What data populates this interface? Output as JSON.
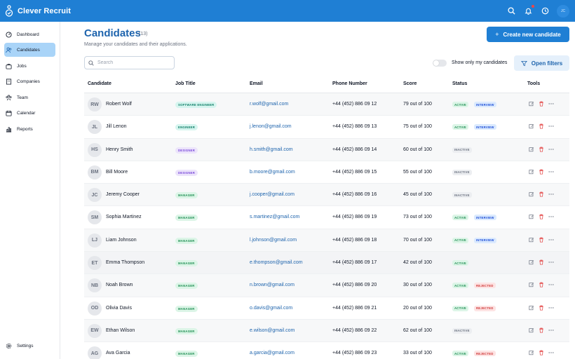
{
  "app": {
    "title": "Clever Recruit",
    "user_initials": "JC"
  },
  "sidebar": {
    "items": [
      {
        "label": "Dashboard",
        "icon": "dashboard-icon"
      },
      {
        "label": "Candidates",
        "icon": "candidates-icon",
        "active": true
      },
      {
        "label": "Jobs",
        "icon": "briefcase-icon"
      },
      {
        "label": "Companies",
        "icon": "building-icon"
      },
      {
        "label": "Team",
        "icon": "team-icon"
      },
      {
        "label": "Calendar",
        "icon": "calendar-icon"
      },
      {
        "label": "Reports",
        "icon": "bar-chart-icon"
      }
    ],
    "settings_label": "Settings"
  },
  "header": {
    "title": "Candidates",
    "count": "(13)",
    "subtitle": "Manage your candidates and their applications.",
    "create_button": "Create new candidate"
  },
  "filters": {
    "search_placeholder": "Search",
    "toggle_label": "Show only my candidates",
    "filter_button": "Open filters"
  },
  "table": {
    "columns": [
      "Candidate",
      "Job Title",
      "Email",
      "Phone Number",
      "Score",
      "Status",
      "Tools"
    ],
    "rows": [
      {
        "initials": "RW",
        "name": "Robert Wolf",
        "job": "SOFTWARE ENGINEER",
        "job_type": "engineer",
        "email": "r.wolf@gmail.com",
        "phone": "+44 (452) 886 09 12",
        "score": "79 out of 100",
        "status": [
          "ACTIVE",
          "INTERVIEW"
        ]
      },
      {
        "initials": "JL",
        "name": "Jill Lenon",
        "job": "ENGINEER",
        "job_type": "engineer",
        "email": "j.lenon@gmail.com",
        "phone": "+44 (452) 886 09 13",
        "score": "75 out of 100",
        "status": [
          "ACTIVE",
          "INTERVIEW"
        ]
      },
      {
        "initials": "HS",
        "name": "Henry Smith",
        "job": "DESIGNER",
        "job_type": "designer",
        "email": "h.smith@gmail.com",
        "phone": "+44 (452) 886 09 14",
        "score": "60 out of 100",
        "status": [
          "INACTIVE"
        ]
      },
      {
        "initials": "BM",
        "name": "Bill Moore",
        "job": "DESIGNER",
        "job_type": "designer",
        "email": "b.moore@gmail.com",
        "phone": "+44 (452) 886 09 15",
        "score": "55 out of 100",
        "status": [
          "INACTIVE"
        ]
      },
      {
        "initials": "JC",
        "name": "Jeremy Cooper",
        "job": "MANAGER",
        "job_type": "manager",
        "email": "j.cooper@gmail.com",
        "phone": "+44 (452) 886 09 16",
        "score": "45 out of 100",
        "status": [
          "INACTIVE"
        ]
      },
      {
        "initials": "SM",
        "name": "Sophia Martinez",
        "job": "MANAGER",
        "job_type": "manager",
        "email": "s.martinez@gmail.com",
        "phone": "+44 (452) 886 09 19",
        "score": "73 out of 100",
        "status": [
          "ACTIVE",
          "INTERVIEW"
        ]
      },
      {
        "initials": "LJ",
        "name": "Liam Johnson",
        "job": "MANAGER",
        "job_type": "manager",
        "email": "l.johnson@gmail.com",
        "phone": "+44 (452) 886 09 18",
        "score": "70 out of 100",
        "status": [
          "ACTIVE",
          "INTERVIEW"
        ]
      },
      {
        "initials": "ET",
        "name": "Emma Thompson",
        "job": "MANAGER",
        "job_type": "manager",
        "email": "e.thompson@gmail.com",
        "phone": "+44 (452) 886 09 17",
        "score": "42 out of 100",
        "status": [
          "ACTIVE"
        ],
        "highlighted": true
      },
      {
        "initials": "NB",
        "name": "Noah Brown",
        "job": "MANAGER",
        "job_type": "manager",
        "email": "n.brown@gmail.com",
        "phone": "+44 (452) 886 09 20",
        "score": "30 out of 100",
        "status": [
          "ACTIVE",
          "REJECTED"
        ]
      },
      {
        "initials": "OD",
        "name": "Olivia Davis",
        "job": "MANAGER",
        "job_type": "manager",
        "email": "o.davis@gmail.com",
        "phone": "+44 (452) 886 09 21",
        "score": "20 out of 100",
        "status": [
          "ACTIVE",
          "REJECTED"
        ]
      },
      {
        "initials": "EW",
        "name": "Ethan Wilson",
        "job": "MANAGER",
        "job_type": "manager",
        "email": "e.wilson@gmail.com",
        "phone": "+44 (452) 886 09 22",
        "score": "62 out of 100",
        "status": [
          "INACTIVE"
        ]
      },
      {
        "initials": "AG",
        "name": "Ava Garcia",
        "job": "MANAGER",
        "job_type": "manager",
        "email": "a.garcia@gmail.com",
        "phone": "+44 (452) 886 09 23",
        "score": "33 out of 100",
        "status": [
          "ACTIVE",
          "REJECTED"
        ]
      }
    ]
  },
  "colors": {
    "brand": "#1f7fd4",
    "title": "#1e64ad",
    "active_nav": "#a9d4f8",
    "badge_engineer_bg": "#d6f5ef",
    "badge_engineer_fg": "#13806a",
    "badge_designer_bg": "#ece4fb",
    "badge_designer_fg": "#7c4ddb",
    "badge_manager_bg": "#dcf5e7",
    "badge_manager_fg": "#1f8f53",
    "status_active_bg": "#dcf5e7",
    "status_active_fg": "#1f8f53",
    "status_interview_bg": "#dbeafe",
    "status_interview_fg": "#1d4ed8",
    "status_inactive_bg": "#eceef1",
    "status_inactive_fg": "#6b7280",
    "status_rejected_bg": "#fde3e3",
    "status_rejected_fg": "#d03a3a"
  }
}
